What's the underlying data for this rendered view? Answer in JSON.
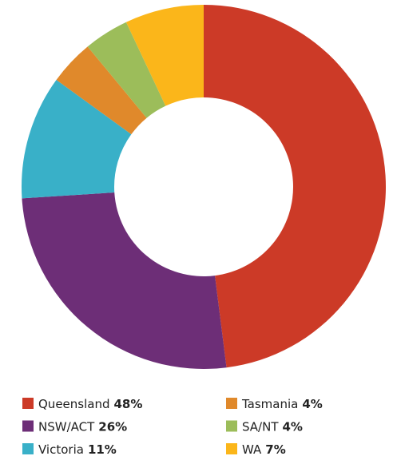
{
  "chart_data": {
    "type": "donut",
    "categories": [
      "Queensland",
      "NSW/ACT",
      "Victoria",
      "Tasmania",
      "SA/NT",
      "WA"
    ],
    "values": [
      48,
      26,
      11,
      4,
      4,
      7
    ],
    "value_labels": [
      "48%",
      "26%",
      "11%",
      "4%",
      "4%",
      "7%"
    ],
    "colors": [
      "#cc3a27",
      "#6d2e77",
      "#39b0c8",
      "#e0892b",
      "#9cbd5a",
      "#fbb61a"
    ],
    "legend": "bottom"
  }
}
